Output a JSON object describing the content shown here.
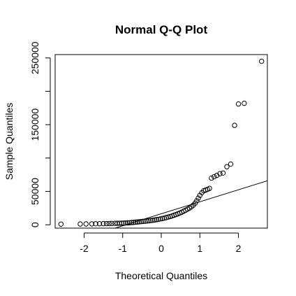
{
  "chart_data": {
    "type": "scatter",
    "title": "Normal Q-Q Plot",
    "xlabel": "Theoretical Quantiles",
    "ylabel": "Sample Quantiles",
    "xlim": [
      -2.75,
      2.75
    ],
    "ylim": [
      -5000,
      255000
    ],
    "x_ticks": [
      -2,
      -1,
      0,
      1,
      2
    ],
    "x_tick_labels": [
      "-2",
      "-1",
      "0",
      "1",
      "2"
    ],
    "y_ticks": [
      0,
      50000,
      100000,
      150000,
      200000,
      250000
    ],
    "y_tick_labels": [
      "0",
      "50000",
      "",
      "150000",
      "",
      "250000"
    ],
    "grid": false,
    "legend": "none",
    "reference_line": {
      "slope": 18000,
      "intercept": 16500
    },
    "series": [
      {
        "points": [
          {
            "x": -2.6,
            "y": 1000
          },
          {
            "x": -2.1,
            "y": 1200
          },
          {
            "x": -1.95,
            "y": 1300
          },
          {
            "x": -1.8,
            "y": 1400
          },
          {
            "x": -1.7,
            "y": 1500
          },
          {
            "x": -1.6,
            "y": 1600
          },
          {
            "x": -1.5,
            "y": 1700
          },
          {
            "x": -1.42,
            "y": 1800
          },
          {
            "x": -1.35,
            "y": 1900
          },
          {
            "x": -1.28,
            "y": 2000
          },
          {
            "x": -1.2,
            "y": 2100
          },
          {
            "x": -1.14,
            "y": 2200
          },
          {
            "x": -1.08,
            "y": 2300
          },
          {
            "x": -1.02,
            "y": 2400
          },
          {
            "x": -0.97,
            "y": 2500
          },
          {
            "x": -0.92,
            "y": 2700
          },
          {
            "x": -0.87,
            "y": 2900
          },
          {
            "x": -0.82,
            "y": 3100
          },
          {
            "x": -0.77,
            "y": 3300
          },
          {
            "x": -0.72,
            "y": 3600
          },
          {
            "x": -0.67,
            "y": 3900
          },
          {
            "x": -0.62,
            "y": 4200
          },
          {
            "x": -0.57,
            "y": 4500
          },
          {
            "x": -0.52,
            "y": 4800
          },
          {
            "x": -0.47,
            "y": 5100
          },
          {
            "x": -0.42,
            "y": 5400
          },
          {
            "x": -0.37,
            "y": 5700
          },
          {
            "x": -0.32,
            "y": 6000
          },
          {
            "x": -0.27,
            "y": 6400
          },
          {
            "x": -0.22,
            "y": 6800
          },
          {
            "x": -0.17,
            "y": 7200
          },
          {
            "x": -0.12,
            "y": 7700
          },
          {
            "x": -0.07,
            "y": 8200
          },
          {
            "x": -0.02,
            "y": 8800
          },
          {
            "x": 0.03,
            "y": 9400
          },
          {
            "x": 0.08,
            "y": 10000
          },
          {
            "x": 0.13,
            "y": 10800
          },
          {
            "x": 0.18,
            "y": 11600
          },
          {
            "x": 0.23,
            "y": 12400
          },
          {
            "x": 0.28,
            "y": 13300
          },
          {
            "x": 0.33,
            "y": 14300
          },
          {
            "x": 0.38,
            "y": 15300
          },
          {
            "x": 0.43,
            "y": 16400
          },
          {
            "x": 0.48,
            "y": 17600
          },
          {
            "x": 0.53,
            "y": 18900
          },
          {
            "x": 0.58,
            "y": 20300
          },
          {
            "x": 0.63,
            "y": 21800
          },
          {
            "x": 0.68,
            "y": 23400
          },
          {
            "x": 0.73,
            "y": 25000
          },
          {
            "x": 0.78,
            "y": 27000
          },
          {
            "x": 0.83,
            "y": 29500
          },
          {
            "x": 0.88,
            "y": 32500
          },
          {
            "x": 0.92,
            "y": 36000
          },
          {
            "x": 0.96,
            "y": 40000
          },
          {
            "x": 1.0,
            "y": 44000
          },
          {
            "x": 1.05,
            "y": 48000
          },
          {
            "x": 1.1,
            "y": 51000
          },
          {
            "x": 1.15,
            "y": 52000
          },
          {
            "x": 1.2,
            "y": 53000
          },
          {
            "x": 1.25,
            "y": 54500
          },
          {
            "x": 1.3,
            "y": 70000
          },
          {
            "x": 1.37,
            "y": 72000
          },
          {
            "x": 1.44,
            "y": 74000
          },
          {
            "x": 1.52,
            "y": 76500
          },
          {
            "x": 1.6,
            "y": 77500
          },
          {
            "x": 1.7,
            "y": 87000
          },
          {
            "x": 1.8,
            "y": 91000
          },
          {
            "x": 1.9,
            "y": 149000
          },
          {
            "x": 2.0,
            "y": 181000
          },
          {
            "x": 2.15,
            "y": 182000
          },
          {
            "x": 2.6,
            "y": 245000
          }
        ]
      }
    ],
    "colors": {
      "background": "#ffffff",
      "axis": "#000000",
      "point_stroke": "#000000",
      "line": "#000000"
    }
  }
}
